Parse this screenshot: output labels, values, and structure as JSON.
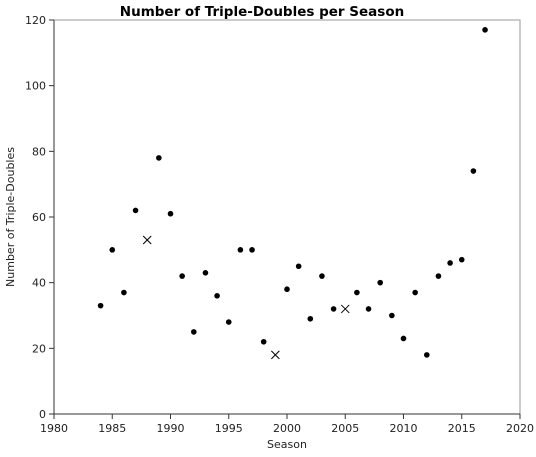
{
  "chart_data": {
    "type": "scatter",
    "title": "Number of Triple-Doubles per Season",
    "xlabel": "Season",
    "ylabel": "Number of Triple-Doubles",
    "xlim": [
      1980,
      2020
    ],
    "ylim": [
      0,
      120
    ],
    "xticks": [
      1980,
      1985,
      1990,
      1995,
      2000,
      2005,
      2010,
      2015,
      2020
    ],
    "yticks": [
      0,
      20,
      40,
      60,
      80,
      100,
      120
    ],
    "grid": false,
    "marker_color": "#000000",
    "series": [
      {
        "marker": "dot",
        "points": [
          {
            "x": 1984,
            "y": 33
          },
          {
            "x": 1985,
            "y": 50
          },
          {
            "x": 1986,
            "y": 37
          },
          {
            "x": 1987,
            "y": 62
          },
          {
            "x": 1989,
            "y": 78
          },
          {
            "x": 1990,
            "y": 61
          },
          {
            "x": 1991,
            "y": 42
          },
          {
            "x": 1992,
            "y": 25
          },
          {
            "x": 1993,
            "y": 43
          },
          {
            "x": 1994,
            "y": 36
          },
          {
            "x": 1995,
            "y": 28
          },
          {
            "x": 1996,
            "y": 50
          },
          {
            "x": 1997,
            "y": 50
          },
          {
            "x": 1998,
            "y": 22
          },
          {
            "x": 2000,
            "y": 38
          },
          {
            "x": 2001,
            "y": 45
          },
          {
            "x": 2002,
            "y": 29
          },
          {
            "x": 2003,
            "y": 42
          },
          {
            "x": 2004,
            "y": 32
          },
          {
            "x": 2006,
            "y": 37
          },
          {
            "x": 2007,
            "y": 32
          },
          {
            "x": 2008,
            "y": 40
          },
          {
            "x": 2009,
            "y": 30
          },
          {
            "x": 2010,
            "y": 23
          },
          {
            "x": 2011,
            "y": 37
          },
          {
            "x": 2012,
            "y": 18
          },
          {
            "x": 2013,
            "y": 42
          },
          {
            "x": 2014,
            "y": 46
          },
          {
            "x": 2015,
            "y": 47
          },
          {
            "x": 2016,
            "y": 74
          },
          {
            "x": 2017,
            "y": 117
          }
        ]
      },
      {
        "marker": "cross",
        "points": [
          {
            "x": 1988,
            "y": 53
          },
          {
            "x": 1999,
            "y": 18
          },
          {
            "x": 2005,
            "y": 32
          }
        ]
      }
    ]
  }
}
